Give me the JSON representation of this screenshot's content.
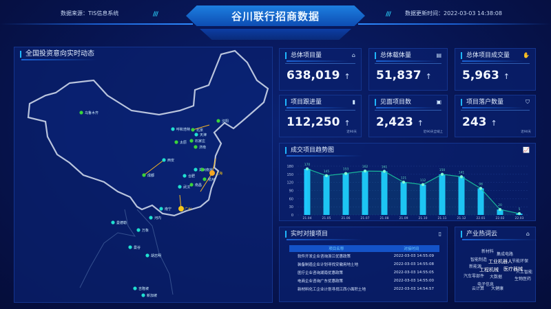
{
  "header": {
    "title": "谷川联行招商数据",
    "source": "数据来源：TIS信息系统",
    "updated": "数据更新时间：2022-03-03 14:38:08"
  },
  "map": {
    "title": "全国投资意向实时动态",
    "cities": [
      {
        "name": "乌鲁木齐",
        "color": "#3ad43a"
      },
      {
        "name": "沈阳",
        "color": "#3ad43a"
      },
      {
        "name": "呼和浩特",
        "color": "#20e0d0"
      },
      {
        "name": "北京",
        "color": "#3ad43a"
      },
      {
        "name": "天津",
        "color": "#20e0d0"
      },
      {
        "name": "太原",
        "color": "#3ad43a"
      },
      {
        "name": "石家庄",
        "color": "#3ad43a"
      },
      {
        "name": "济南",
        "color": "#3ad43a"
      },
      {
        "name": "西安",
        "color": "#20e0d0"
      },
      {
        "name": "成都",
        "color": "#3ad43a"
      },
      {
        "name": "郑州",
        "color": "#20e0d0"
      },
      {
        "name": "南京",
        "color": "#3ad43a"
      },
      {
        "name": "上海",
        "color": "#f5a623"
      },
      {
        "name": "合肥",
        "color": "#20e0d0"
      },
      {
        "name": "杭州",
        "color": "#3ad43a"
      },
      {
        "name": "武汉",
        "color": "#20e0d0"
      },
      {
        "name": "南昌",
        "color": "#3ad43a"
      },
      {
        "name": "南宁",
        "color": "#20e0d0"
      },
      {
        "name": "广州",
        "color": "#f5c518"
      },
      {
        "name": "河内",
        "color": "#20e0d0"
      },
      {
        "name": "曼德勒",
        "color": "#20e0d0"
      },
      {
        "name": "万象",
        "color": "#20e0d0"
      },
      {
        "name": "曼谷",
        "color": "#20e0d0"
      },
      {
        "name": "胡志明",
        "color": "#20e0d0"
      },
      {
        "name": "吉隆坡",
        "color": "#20e0d0"
      },
      {
        "name": "新加坡",
        "color": "#20e0d0"
      }
    ]
  },
  "stats": [
    {
      "label": "总体项目量",
      "value": "638,019",
      "icon": "briefcase-icon",
      "note": ""
    },
    {
      "label": "总体载体量",
      "value": "51,837",
      "icon": "building-icon",
      "note": ""
    },
    {
      "label": "总体项目成交量",
      "value": "5,963",
      "icon": "handshake-icon",
      "note": ""
    },
    {
      "label": "项目跟进量",
      "value": "112,250",
      "icon": "bookmark-icon",
      "note": "近90天"
    },
    {
      "label": "见面项目数",
      "value": "2,423",
      "icon": "case-icon",
      "note": "近90天全域上"
    },
    {
      "label": "项目落户数量",
      "value": "243",
      "icon": "shield-icon",
      "note": "近90天"
    }
  ],
  "up_arrow": "↑",
  "chart_data": {
    "type": "bar",
    "title": "成交项目趋势图",
    "categories": [
      "21.04",
      "21.05",
      "21.06",
      "21.07",
      "21.08",
      "21.09",
      "21.10",
      "21.11",
      "21.12",
      "22.01",
      "22.02",
      "22.03"
    ],
    "values": [
      170,
      145,
      153,
      162,
      161,
      121,
      112,
      150,
      141,
      98,
      20,
      5
    ],
    "line_overlay": true,
    "ylim": [
      0,
      180
    ],
    "yticks": [
      0,
      30,
      60,
      90,
      120,
      150,
      180
    ],
    "colors": {
      "bar": "#1ec8ff",
      "line": "#19b89a"
    }
  },
  "table": {
    "title": "实时对接项目",
    "columns": [
      "项目名称",
      "对接时间"
    ],
    "rows": [
      [
        "软件开发企业咨询浙江优惠政策",
        "2022-03-03 14:55:09"
      ],
      [
        "装备制造企业计划寻找安徽用地土地",
        "2022-03-03 14:55:08"
      ],
      [
        "医疗企业咨询湖南优惠政策",
        "2022-03-03 14:55:05"
      ],
      [
        "电商企业咨询广东优惠政策",
        "2022-03-03 14:55:00"
      ],
      [
        "新材料化工企业计划寻找江西小面积土地",
        "2022-03-03 14:54:57"
      ]
    ]
  },
  "wordcloud": {
    "title": "产业热词云",
    "words": [
      "新材料",
      "集成电路",
      "智能制造",
      "工业机器人",
      "节能环保",
      "新能源",
      "工程机械",
      "医疗器械",
      "人工智能",
      "汽车零部件",
      "大数据",
      "生物医药",
      "电子信息",
      "云计算",
      "大健康"
    ]
  }
}
